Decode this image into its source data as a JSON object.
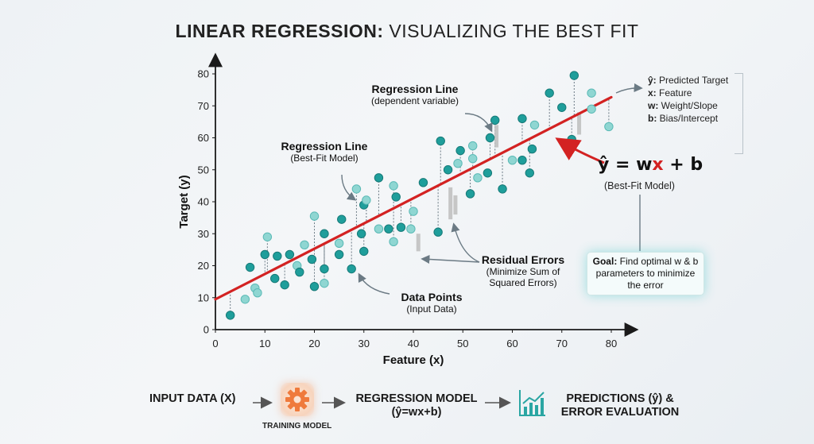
{
  "title": {
    "bold_part": "LINEAR REGRESSION:",
    "rest": " VISUALIZING THE BEST FIT"
  },
  "legend": {
    "items": [
      {
        "sym": "ŷ:",
        "text": " Predicted Target"
      },
      {
        "sym": "x:",
        "text": " Feature"
      },
      {
        "sym": "w:",
        "text": " Weight/Slope"
      },
      {
        "sym": "b:",
        "text": " Bias/Intercept"
      }
    ]
  },
  "equation": {
    "pre": "ŷ = w",
    "x": "x",
    "post": " + b",
    "sub": "(Best-Fit Model)"
  },
  "goal": {
    "label": "Goal:",
    "text": " Find optimal w & b parameters to minimize the error"
  },
  "annotations": {
    "reg_line_top": {
      "title": "Regression Line",
      "sub": "(dependent variable)"
    },
    "reg_line_mid": {
      "title": "Regression Line",
      "sub": "(Best-Fit Model)"
    },
    "residuals": {
      "title": "Residual Errors",
      "sub1": "(Minimize Sum of",
      "sub2": "Squared Errors)"
    },
    "data_points": {
      "title": "Data Points",
      "sub": "(Input Data)"
    }
  },
  "flow": {
    "input": "INPUT DATA (X)",
    "training": "TRAINING MODEL",
    "model_line1": "REGRESSION MODEL",
    "model_line2": "(ŷ=wx+b)",
    "pred_line1": "PREDICTIONS (ŷ) &",
    "pred_line2": "ERROR EVALUATION"
  },
  "colors": {
    "line": "#d32222",
    "point": "#1f9e9b",
    "point_light": "#8fd6d2",
    "axis": "#1a1a1a",
    "residual": "#bdbdbd"
  },
  "chart_data": {
    "type": "scatter",
    "title": "LINEAR REGRESSION: VISUALIZING THE BEST FIT",
    "xlabel": "Feature (x)",
    "ylabel": "Target (y)",
    "xlim": [
      0,
      80
    ],
    "ylim": [
      0,
      80
    ],
    "xticks": [
      0,
      10,
      20,
      30,
      40,
      50,
      60,
      70,
      80
    ],
    "yticks": [
      0,
      10,
      20,
      30,
      40,
      50,
      60,
      70,
      80
    ],
    "grid": false,
    "fit_line": {
      "w": 0.79,
      "b": 9.5,
      "x": [
        0,
        80
      ]
    },
    "points": [
      {
        "x": 3,
        "y": 4.5,
        "light": false
      },
      {
        "x": 6,
        "y": 9.5,
        "light": true
      },
      {
        "x": 7,
        "y": 19.5,
        "light": false
      },
      {
        "x": 8,
        "y": 13,
        "light": true
      },
      {
        "x": 8.5,
        "y": 11.5,
        "light": true
      },
      {
        "x": 10,
        "y": 23.5,
        "light": false
      },
      {
        "x": 10.5,
        "y": 29,
        "light": true
      },
      {
        "x": 12,
        "y": 16,
        "light": false
      },
      {
        "x": 12.5,
        "y": 23,
        "light": false
      },
      {
        "x": 14,
        "y": 14,
        "light": false
      },
      {
        "x": 15,
        "y": 23.5,
        "light": false
      },
      {
        "x": 16.5,
        "y": 20,
        "light": true
      },
      {
        "x": 17,
        "y": 18,
        "light": false
      },
      {
        "x": 18,
        "y": 26.5,
        "light": true
      },
      {
        "x": 19.5,
        "y": 22,
        "light": false
      },
      {
        "x": 20,
        "y": 35.5,
        "light": true
      },
      {
        "x": 20,
        "y": 13.5,
        "light": false
      },
      {
        "x": 22,
        "y": 30,
        "light": false
      },
      {
        "x": 22,
        "y": 19,
        "light": false
      },
      {
        "x": 22,
        "y": 14.5,
        "light": true
      },
      {
        "x": 25,
        "y": 27,
        "light": true
      },
      {
        "x": 25,
        "y": 23.5,
        "light": false
      },
      {
        "x": 25.5,
        "y": 34.5,
        "light": false
      },
      {
        "x": 27.5,
        "y": 19,
        "light": false
      },
      {
        "x": 28.5,
        "y": 44,
        "light": true
      },
      {
        "x": 29.5,
        "y": 30,
        "light": false
      },
      {
        "x": 30,
        "y": 39,
        "light": false
      },
      {
        "x": 30,
        "y": 24.5,
        "light": false
      },
      {
        "x": 30.5,
        "y": 40.5,
        "light": true
      },
      {
        "x": 33,
        "y": 47.5,
        "light": false
      },
      {
        "x": 33,
        "y": 31.5,
        "light": true
      },
      {
        "x": 35,
        "y": 31.5,
        "light": false
      },
      {
        "x": 36,
        "y": 45,
        "light": true
      },
      {
        "x": 36.5,
        "y": 41.5,
        "light": false
      },
      {
        "x": 36,
        "y": 27.5,
        "light": true
      },
      {
        "x": 37.5,
        "y": 32,
        "light": false
      },
      {
        "x": 39.5,
        "y": 31.5,
        "light": true
      },
      {
        "x": 40,
        "y": 37,
        "light": true
      },
      {
        "x": 42,
        "y": 46,
        "light": false
      },
      {
        "x": 45,
        "y": 30.5,
        "light": false
      },
      {
        "x": 45.5,
        "y": 59,
        "light": false
      },
      {
        "x": 47,
        "y": 50,
        "light": false
      },
      {
        "x": 49,
        "y": 52,
        "light": true
      },
      {
        "x": 49.5,
        "y": 56,
        "light": false
      },
      {
        "x": 51.5,
        "y": 42.5,
        "light": false
      },
      {
        "x": 52,
        "y": 57.5,
        "light": true
      },
      {
        "x": 52,
        "y": 53.5,
        "light": true
      },
      {
        "x": 53,
        "y": 47.5,
        "light": true
      },
      {
        "x": 55,
        "y": 49,
        "light": false
      },
      {
        "x": 55.5,
        "y": 60,
        "light": false
      },
      {
        "x": 56.5,
        "y": 65.5,
        "light": false
      },
      {
        "x": 58,
        "y": 44,
        "light": false
      },
      {
        "x": 60,
        "y": 53,
        "light": true
      },
      {
        "x": 62,
        "y": 66,
        "light": false
      },
      {
        "x": 62,
        "y": 53,
        "light": false
      },
      {
        "x": 63.5,
        "y": 49,
        "light": false
      },
      {
        "x": 64,
        "y": 56.5,
        "light": false
      },
      {
        "x": 64.5,
        "y": 64,
        "light": true
      },
      {
        "x": 67.5,
        "y": 74,
        "light": false
      },
      {
        "x": 70,
        "y": 69.5,
        "light": false
      },
      {
        "x": 72,
        "y": 59.5,
        "light": false
      },
      {
        "x": 72.5,
        "y": 79.5,
        "light": false
      },
      {
        "x": 76,
        "y": 74,
        "light": true
      },
      {
        "x": 76,
        "y": 69,
        "light": true
      },
      {
        "x": 79.5,
        "y": 63.5,
        "light": true
      }
    ],
    "residual_bars": [
      {
        "x": 41,
        "y0": 24.5,
        "y1": 30
      },
      {
        "x": 47.5,
        "y0": 34.5,
        "y1": 44.5
      },
      {
        "x": 48.5,
        "y0": 36,
        "y1": 42
      },
      {
        "x": 56.8,
        "y0": 57,
        "y1": 64
      },
      {
        "x": 73.5,
        "y0": 61,
        "y1": 68
      }
    ]
  }
}
